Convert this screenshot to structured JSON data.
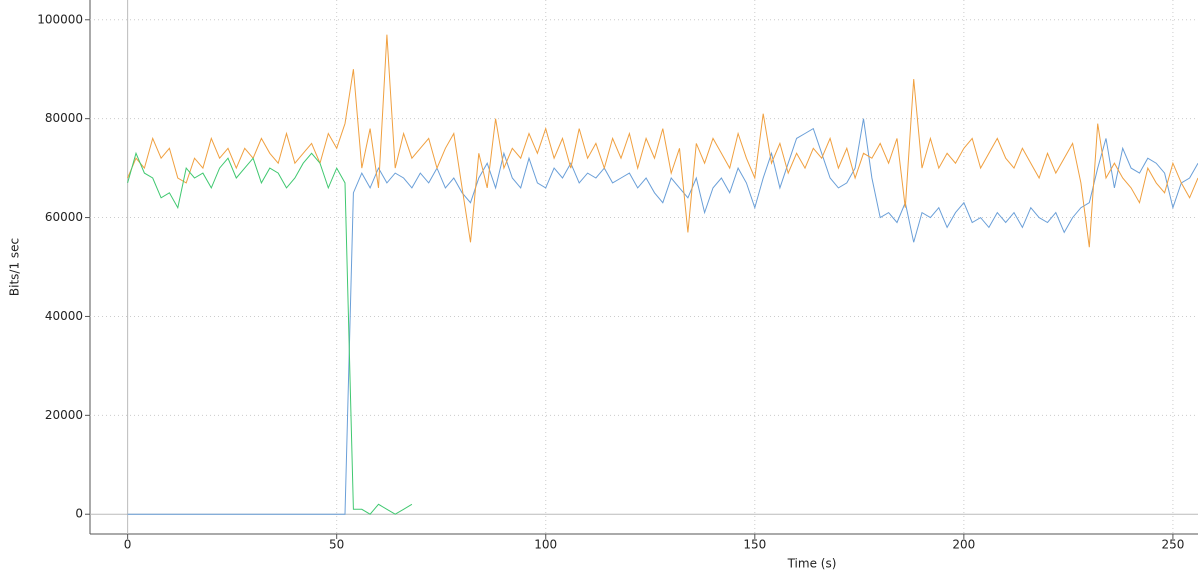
{
  "chart_data": {
    "type": "line",
    "x_label": "Time (s)",
    "y_label": "Bits/1 sec",
    "xlim": [
      -9,
      256
    ],
    "ylim": [
      -4000,
      104000
    ],
    "xticks": [
      0,
      50,
      100,
      150,
      200,
      250
    ],
    "yticks": [
      0,
      20000,
      40000,
      60000,
      80000,
      100000
    ],
    "grid": true,
    "x": [
      0,
      2,
      4,
      6,
      8,
      10,
      12,
      14,
      16,
      18,
      20,
      22,
      24,
      26,
      28,
      30,
      32,
      34,
      36,
      38,
      40,
      42,
      44,
      46,
      48,
      50,
      52,
      54,
      56,
      58,
      60,
      62,
      64,
      66,
      68,
      70,
      72,
      74,
      76,
      78,
      80,
      82,
      84,
      86,
      88,
      90,
      92,
      94,
      96,
      98,
      100,
      102,
      104,
      106,
      108,
      110,
      112,
      114,
      116,
      118,
      120,
      122,
      124,
      126,
      128,
      130,
      132,
      134,
      136,
      138,
      140,
      142,
      144,
      146,
      148,
      150,
      152,
      154,
      156,
      158,
      160,
      162,
      164,
      166,
      168,
      170,
      172,
      174,
      176,
      178,
      180,
      182,
      184,
      186,
      188,
      190,
      192,
      194,
      196,
      198,
      200,
      202,
      204,
      206,
      208,
      210,
      212,
      214,
      216,
      218,
      220,
      222,
      224,
      226,
      228,
      230,
      232,
      234,
      236,
      238,
      240,
      242,
      244,
      246,
      248,
      250,
      252,
      254,
      256
    ],
    "series": [
      {
        "color": "#6a9fd8",
        "values": [
          0,
          0,
          0,
          0,
          0,
          0,
          0,
          0,
          0,
          0,
          0,
          0,
          0,
          0,
          0,
          0,
          0,
          0,
          0,
          0,
          0,
          0,
          0,
          0,
          0,
          0,
          0,
          65000,
          69000,
          66000,
          70000,
          67000,
          69000,
          68000,
          66000,
          69000,
          67000,
          70000,
          66000,
          68000,
          65000,
          63000,
          68000,
          71000,
          66000,
          73000,
          68000,
          66000,
          72000,
          67000,
          66000,
          70000,
          68000,
          71000,
          67000,
          69000,
          68000,
          70000,
          67000,
          68000,
          69000,
          66000,
          68000,
          65000,
          63000,
          68000,
          66000,
          64000,
          68000,
          61000,
          66000,
          68000,
          65000,
          70000,
          67000,
          62000,
          68000,
          73000,
          66000,
          71000,
          76000,
          77000,
          78000,
          73000,
          68000,
          66000,
          67000,
          70000,
          80000,
          68000,
          60000,
          61000,
          59000,
          63000,
          55000,
          61000,
          60000,
          62000,
          58000,
          61000,
          63000,
          59000,
          60000,
          58000,
          61000,
          59000,
          61000,
          58000,
          62000,
          60000,
          59000,
          61000,
          57000,
          60000,
          62000,
          63000,
          70000,
          76000,
          66000,
          74000,
          70000,
          69000,
          72000,
          71000,
          69000,
          62000,
          67000,
          68000,
          71000
        ]
      },
      {
        "color": "#f0a040",
        "values": [
          68000,
          72000,
          70000,
          76000,
          72000,
          74000,
          68000,
          67000,
          72000,
          70000,
          76000,
          72000,
          74000,
          70000,
          74000,
          72000,
          76000,
          73000,
          71000,
          77000,
          71000,
          73000,
          75000,
          71000,
          77000,
          74000,
          79000,
          90000,
          70000,
          78000,
          66000,
          97000,
          70000,
          77000,
          72000,
          74000,
          76000,
          70000,
          74000,
          77000,
          66000,
          55000,
          73000,
          66000,
          80000,
          70000,
          74000,
          72000,
          77000,
          73000,
          78000,
          72000,
          76000,
          70000,
          78000,
          72000,
          75000,
          70000,
          76000,
          72000,
          77000,
          70000,
          76000,
          72000,
          78000,
          69000,
          74000,
          57000,
          75000,
          71000,
          76000,
          73000,
          70000,
          77000,
          72000,
          68000,
          81000,
          71000,
          75000,
          69000,
          73000,
          70000,
          74000,
          72000,
          76000,
          70000,
          74000,
          68000,
          73000,
          72000,
          75000,
          71000,
          76000,
          62000,
          88000,
          70000,
          76000,
          70000,
          73000,
          71000,
          74000,
          76000,
          70000,
          73000,
          76000,
          72000,
          70000,
          74000,
          71000,
          68000,
          73000,
          69000,
          72000,
          75000,
          67000,
          54000,
          79000,
          68000,
          71000,
          68000,
          66000,
          63000,
          70000,
          67000,
          65000,
          71000,
          67000,
          64000,
          68000
        ]
      },
      {
        "color": "#40c870",
        "x": [
          0,
          2,
          4,
          6,
          8,
          10,
          12,
          14,
          16,
          18,
          20,
          22,
          24,
          26,
          28,
          30,
          32,
          34,
          36,
          38,
          40,
          42,
          44,
          46,
          48,
          50,
          52,
          54,
          56,
          58,
          60,
          62,
          64,
          66,
          68
        ],
        "values": [
          67000,
          73000,
          69000,
          68000,
          64000,
          65000,
          62000,
          70000,
          68000,
          69000,
          66000,
          70000,
          72000,
          68000,
          70000,
          72000,
          67000,
          70000,
          69000,
          66000,
          68000,
          71000,
          73000,
          71000,
          66000,
          70000,
          67000,
          1000,
          1000,
          0,
          2000,
          1000,
          0,
          1000,
          2000
        ]
      }
    ]
  }
}
